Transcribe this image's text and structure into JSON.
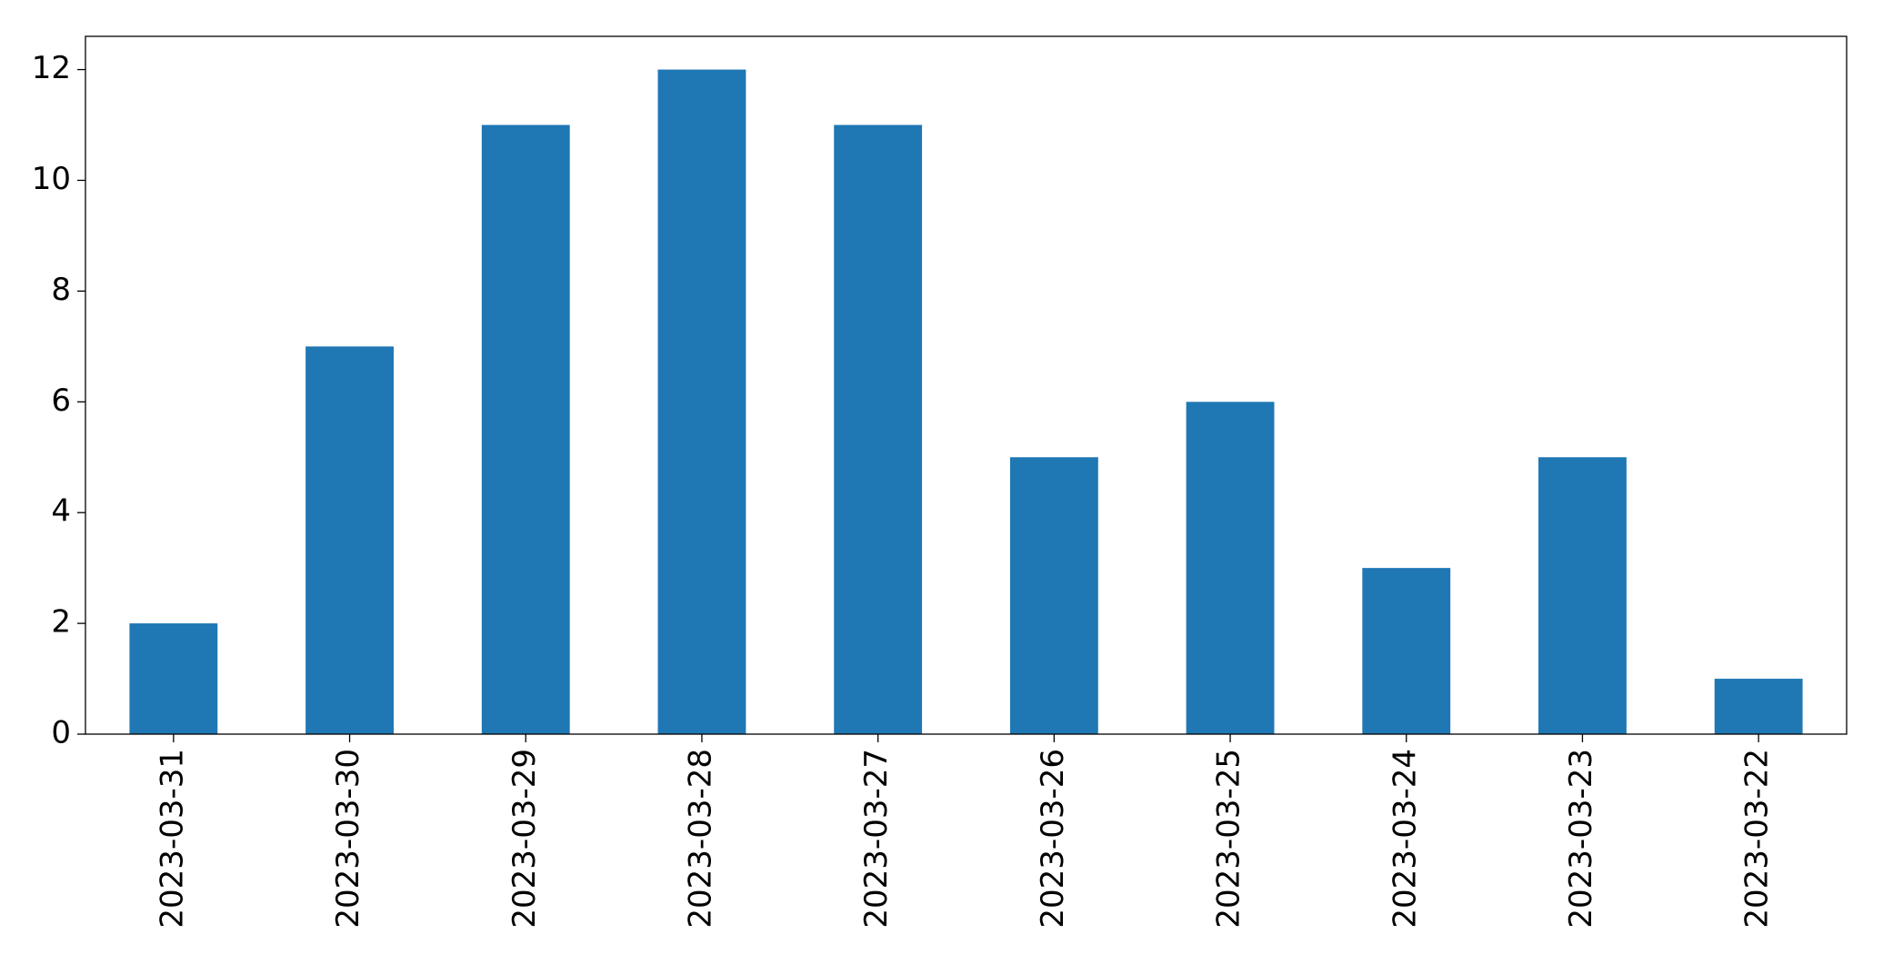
{
  "chart_data": {
    "type": "bar",
    "categories": [
      "2023-03-31",
      "2023-03-30",
      "2023-03-29",
      "2023-03-28",
      "2023-03-27",
      "2023-03-26",
      "2023-03-25",
      "2023-03-24",
      "2023-03-23",
      "2023-03-22"
    ],
    "values": [
      2,
      7,
      11,
      12,
      11,
      5,
      6,
      3,
      5,
      1
    ],
    "color": "#1f77b4",
    "ylim": [
      0,
      12.6
    ],
    "yticks": [
      0,
      2,
      4,
      6,
      8,
      10,
      12
    ],
    "grid": false
  }
}
